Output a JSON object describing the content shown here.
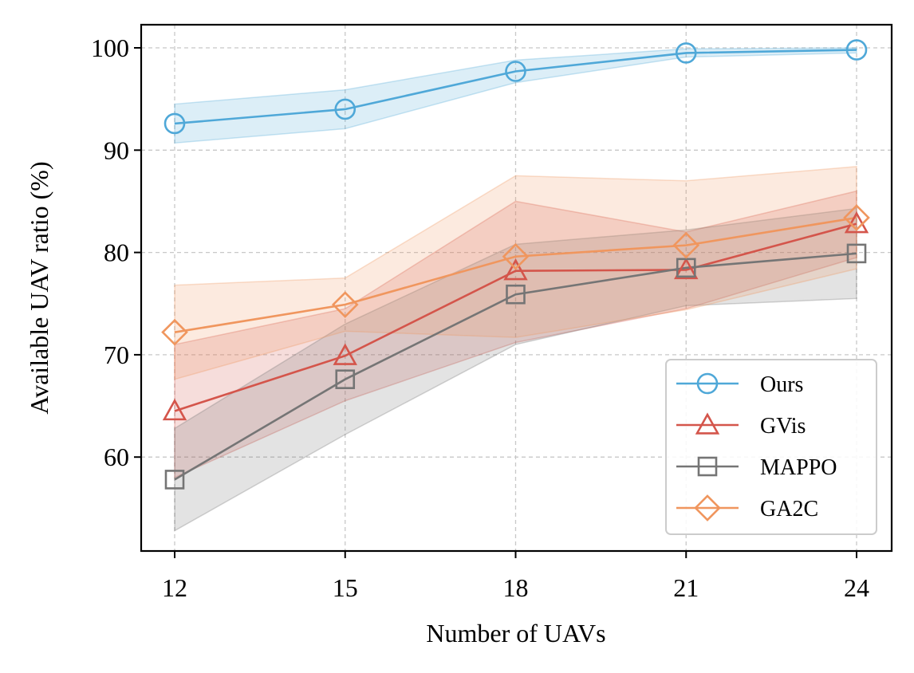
{
  "chart_data": {
    "type": "line",
    "title": "",
    "xlabel": "Number of UAVs",
    "ylabel": "Available UAV ratio (%)",
    "x": [
      12,
      15,
      18,
      21,
      24
    ],
    "xticks": [
      "12",
      "15",
      "18",
      "21",
      "24"
    ],
    "yticks": [
      "60",
      "70",
      "80",
      "90",
      "100"
    ],
    "ylim": [
      50.5,
      102.3
    ],
    "grid": true,
    "legend_position": "lower-right",
    "series": [
      {
        "name": "Ours",
        "color": "#4FA8D8",
        "marker": "circle",
        "values": [
          92.6,
          94.0,
          97.7,
          99.5,
          99.8
        ],
        "band_upper": [
          94.5,
          95.9,
          98.8,
          99.9,
          100.0
        ],
        "band_lower": [
          90.7,
          92.1,
          96.6,
          99.1,
          99.5
        ]
      },
      {
        "name": "GVis",
        "color": "#D4554B",
        "marker": "triangle",
        "values": [
          64.5,
          69.9,
          78.2,
          78.3,
          82.8
        ],
        "band_upper": [
          71.0,
          74.5,
          85.0,
          82.0,
          86.0
        ],
        "band_lower": [
          58.0,
          65.5,
          71.2,
          74.5,
          79.5
        ]
      },
      {
        "name": "MAPPO",
        "color": "#757575",
        "marker": "square",
        "values": [
          57.8,
          67.6,
          75.9,
          78.5,
          79.9
        ],
        "band_upper": [
          62.8,
          73.0,
          80.8,
          82.2,
          84.3
        ],
        "band_lower": [
          52.8,
          62.2,
          71.0,
          74.8,
          75.5
        ]
      },
      {
        "name": "GA2C",
        "color": "#F0965E",
        "marker": "diamond",
        "values": [
          72.2,
          74.9,
          79.6,
          80.7,
          83.4
        ],
        "band_upper": [
          76.8,
          77.5,
          87.5,
          87.0,
          88.4
        ],
        "band_lower": [
          67.6,
          72.3,
          71.7,
          74.4,
          78.4
        ]
      }
    ]
  }
}
